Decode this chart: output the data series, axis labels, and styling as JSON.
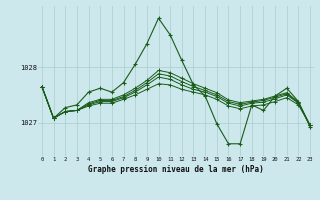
{
  "title": "Graphe pression niveau de la mer (hPa)",
  "background_color": "#cce8ec",
  "grid_color": "#aacccc",
  "line_color": "#1a5c1a",
  "x_ticks": [
    0,
    1,
    2,
    3,
    4,
    5,
    6,
    7,
    8,
    9,
    10,
    11,
    12,
    13,
    14,
    15,
    16,
    17,
    18,
    19,
    20,
    21,
    22,
    23
  ],
  "y_ticks": [
    1027,
    1028
  ],
  "ylim": [
    1026.4,
    1029.1
  ],
  "xlim": [
    -0.3,
    23.3
  ],
  "series": [
    [
      1027.65,
      1027.08,
      1027.2,
      1027.22,
      1027.3,
      1027.35,
      1027.35,
      1027.42,
      1027.5,
      1027.6,
      1027.7,
      1027.68,
      1027.6,
      1027.55,
      1027.5,
      1027.42,
      1027.3,
      1027.25,
      1027.3,
      1027.32,
      1027.38,
      1027.45,
      1027.32,
      1026.95
    ],
    [
      1027.65,
      1027.08,
      1027.2,
      1027.22,
      1027.32,
      1027.38,
      1027.38,
      1027.45,
      1027.55,
      1027.68,
      1027.82,
      1027.78,
      1027.68,
      1027.6,
      1027.55,
      1027.47,
      1027.35,
      1027.3,
      1027.35,
      1027.37,
      1027.43,
      1027.5,
      1027.35,
      1026.95
    ],
    [
      1027.65,
      1027.08,
      1027.2,
      1027.22,
      1027.34,
      1027.4,
      1027.4,
      1027.47,
      1027.58,
      1027.72,
      1027.88,
      1027.84,
      1027.74,
      1027.65,
      1027.58,
      1027.5,
      1027.38,
      1027.33,
      1027.37,
      1027.4,
      1027.46,
      1027.52,
      1027.36,
      1026.95
    ],
    [
      1027.65,
      1027.08,
      1027.2,
      1027.22,
      1027.36,
      1027.42,
      1027.42,
      1027.5,
      1027.62,
      1027.76,
      1027.94,
      1027.9,
      1027.8,
      1027.7,
      1027.62,
      1027.54,
      1027.41,
      1027.36,
      1027.39,
      1027.42,
      1027.48,
      1027.54,
      1027.37,
      1026.95
    ]
  ],
  "main_series": [
    1027.65,
    1027.08,
    1027.27,
    1027.32,
    1027.55,
    1027.62,
    1027.55,
    1027.72,
    1028.05,
    1028.42,
    1028.88,
    1028.58,
    1028.12,
    1027.68,
    1027.48,
    1026.98,
    1026.62,
    1026.62,
    1027.32,
    1027.22,
    1027.48,
    1027.62,
    1027.38,
    1026.92
  ]
}
